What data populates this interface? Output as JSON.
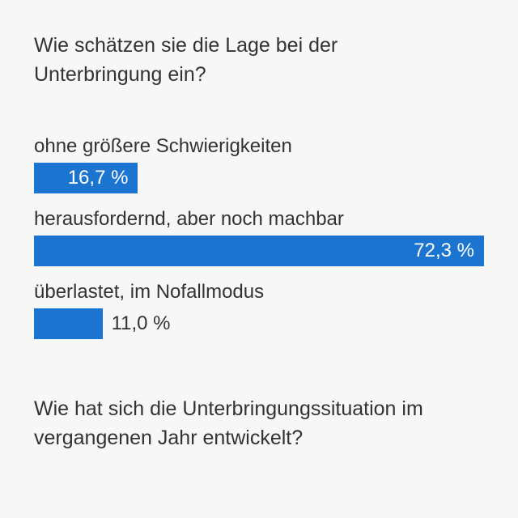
{
  "chart_data": {
    "type": "bar",
    "orientation": "horizontal",
    "title": "Wie schätzen sie die Lage bei der Unterbringung ein?",
    "categories": [
      "ohne größere Schwierigkeiten",
      "herausfordernd, aber noch machbar",
      "überlastet, im Nofallmodus"
    ],
    "values": [
      16.7,
      72.3,
      11.0
    ],
    "value_labels": [
      "16,7 %",
      "72,3 %",
      "11,0 %"
    ],
    "color": "#1b75d0"
  },
  "next_section": {
    "title": "Wie hat sich die Unterbringungssituation im vergangenen Jahr entwickelt?"
  }
}
